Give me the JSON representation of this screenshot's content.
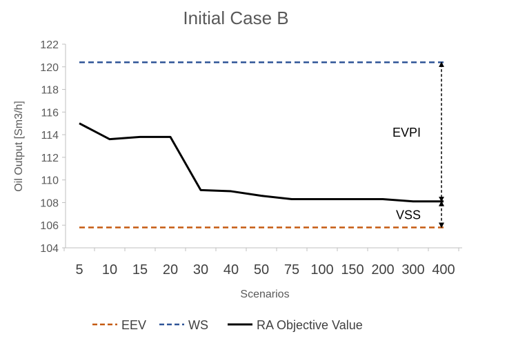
{
  "chart_data": {
    "type": "line",
    "title": "Initial Case B",
    "xlabel": "Scenarios",
    "ylabel": "Oil Output [Sm3/h]",
    "categories": [
      "5",
      "10",
      "15",
      "20",
      "30",
      "40",
      "50",
      "75",
      "100",
      "150",
      "200",
      "300",
      "400"
    ],
    "ylim": [
      104,
      122
    ],
    "yticks": [
      104,
      106,
      108,
      110,
      112,
      114,
      116,
      118,
      120,
      122
    ],
    "grid": false,
    "legend_position": "bottom",
    "series": [
      {
        "name": "EEV",
        "style": "dashed",
        "color": "#c55a11",
        "values": [
          105.8,
          105.8,
          105.8,
          105.8,
          105.8,
          105.8,
          105.8,
          105.8,
          105.8,
          105.8,
          105.8,
          105.8,
          105.8
        ]
      },
      {
        "name": "WS",
        "style": "dashed",
        "color": "#2f5597",
        "values": [
          120.4,
          120.4,
          120.4,
          120.4,
          120.4,
          120.4,
          120.4,
          120.4,
          120.4,
          120.4,
          120.4,
          120.4,
          120.4
        ]
      },
      {
        "name": "RA Objective Value",
        "style": "solid",
        "color": "#000000",
        "values": [
          115.0,
          113.6,
          113.8,
          113.8,
          109.1,
          109.0,
          108.6,
          108.3,
          108.3,
          108.3,
          108.3,
          108.1,
          108.1
        ]
      }
    ],
    "annotations": [
      {
        "label": "EVPI",
        "from": 108.1,
        "to": 120.4
      },
      {
        "label": "VSS",
        "from": 105.8,
        "to": 108.1
      }
    ]
  }
}
